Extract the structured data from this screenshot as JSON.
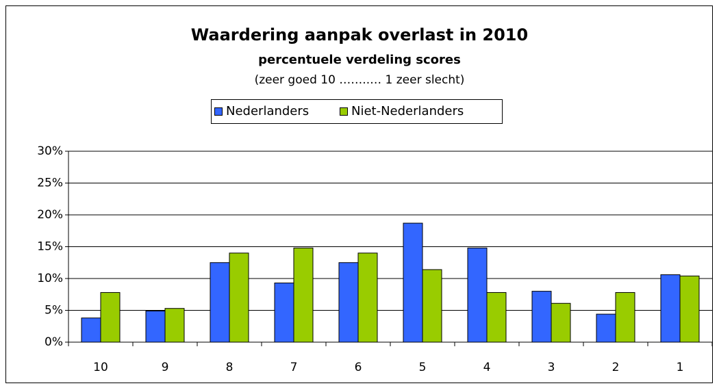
{
  "chart_data": {
    "type": "bar",
    "title": "Waardering aanpak overlast in 2010",
    "subtitle": "percentuele verdeling scores",
    "annotation": "(zeer goed 10 ……..… 1 zeer slecht)",
    "categories": [
      "10",
      "9",
      "8",
      "7",
      "6",
      "5",
      "4",
      "3",
      "2",
      "1"
    ],
    "series": [
      {
        "name": "Nederlanders",
        "color": "#3366ff",
        "values": [
          3.8,
          4.9,
          12.5,
          9.3,
          12.5,
          18.7,
          14.8,
          8.0,
          4.4,
          10.6
        ]
      },
      {
        "name": "Niet-Nederlanders",
        "color": "#99cc00",
        "values": [
          7.8,
          5.3,
          14.0,
          14.8,
          14.0,
          11.4,
          7.8,
          6.1,
          7.8,
          10.4
        ]
      }
    ],
    "ylim": [
      0,
      30
    ],
    "yticks": [
      {
        "value": 0,
        "label": "0%"
      },
      {
        "value": 5,
        "label": "5%"
      },
      {
        "value": 10,
        "label": "10%"
      },
      {
        "value": 15,
        "label": "15%"
      },
      {
        "value": 20,
        "label": "20%"
      },
      {
        "value": 25,
        "label": "25%"
      },
      {
        "value": 30,
        "label": "30%"
      }
    ],
    "grid": true,
    "legend": "top"
  }
}
